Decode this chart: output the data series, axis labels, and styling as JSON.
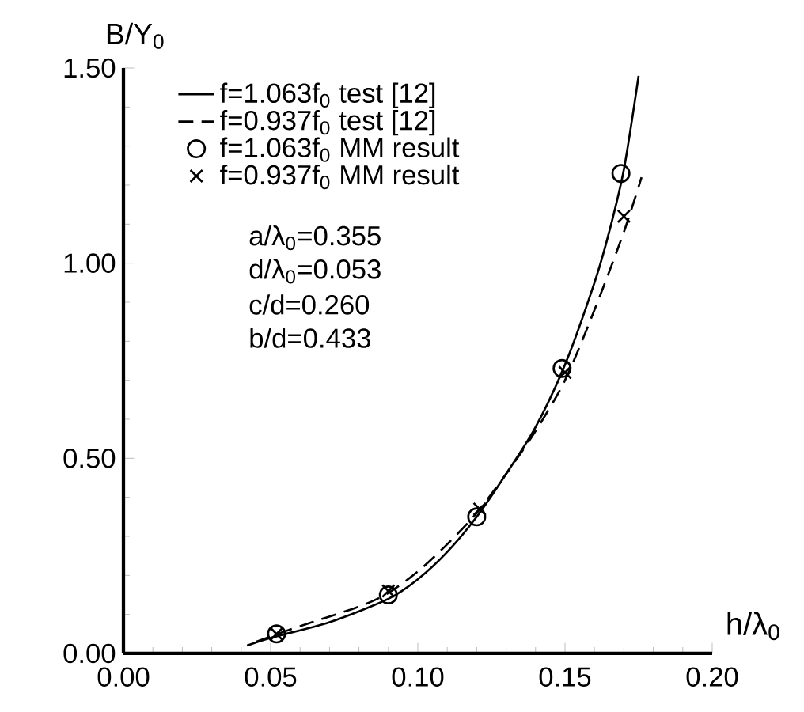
{
  "chart_data": {
    "type": "line",
    "xlabel": "h/λ$_{0}$",
    "ylabel": "B/Y$_{0}$",
    "xlim": [
      0,
      0.2
    ],
    "ylim": [
      0,
      1.5
    ],
    "xticks": [
      {
        "value": 0,
        "label": "0.00"
      },
      {
        "value": 0.05,
        "label": "0.05"
      },
      {
        "value": 0.1,
        "label": "0.10"
      },
      {
        "value": 0.15,
        "label": "0.15"
      },
      {
        "value": 0.2,
        "label": "0.20"
      }
    ],
    "yticks": [
      {
        "value": 0,
        "label": "0.00"
      },
      {
        "value": 0.5,
        "label": "0.50"
      },
      {
        "value": 1.0,
        "label": "1.00"
      },
      {
        "value": 1.5,
        "label": "1.50"
      }
    ],
    "grid": false,
    "legend": "top left",
    "series": [
      {
        "name": "f=1.063f$_{0}$ test [12]",
        "line_style": "solid",
        "marker": "none",
        "color": "#000000",
        "x": [
          0.042,
          0.05,
          0.07,
          0.09,
          0.1,
          0.11,
          0.12,
          0.13,
          0.14,
          0.15,
          0.16,
          0.165,
          0.17,
          0.175
        ],
        "values": [
          0.02,
          0.04,
          0.08,
          0.14,
          0.19,
          0.26,
          0.35,
          0.46,
          0.58,
          0.74,
          0.95,
          1.08,
          1.24,
          1.48
        ]
      },
      {
        "name": "f=0.937f$_{0}$ test [12]",
        "line_style": "dashed",
        "marker": "none",
        "color": "#000000",
        "x": [
          0.045,
          0.06,
          0.08,
          0.09,
          0.1,
          0.11,
          0.12,
          0.13,
          0.14,
          0.15,
          0.16,
          0.17,
          0.176
        ],
        "values": [
          0.03,
          0.07,
          0.12,
          0.155,
          0.21,
          0.28,
          0.36,
          0.46,
          0.57,
          0.7,
          0.88,
          1.08,
          1.22
        ]
      },
      {
        "name": "f=1.063f$_{0}$ MM  result",
        "type": "scatter",
        "marker": "circle",
        "color": "#000000",
        "x": [
          0.052,
          0.09,
          0.12,
          0.149,
          0.169
        ],
        "values": [
          0.05,
          0.15,
          0.35,
          0.73,
          1.23
        ]
      },
      {
        "name": "f=0.937f$_{0}$ MM  result",
        "type": "scatter",
        "marker": "cross",
        "color": "#000000",
        "x": [
          0.052,
          0.09,
          0.121,
          0.15,
          0.17
        ],
        "values": [
          0.05,
          0.16,
          0.37,
          0.72,
          1.12
        ]
      }
    ],
    "annotations": [
      "a/λ$_{0}$=0.355",
      "d/λ$_{0}$=0.053",
      "c/d=0.260",
      "b/d=0.433"
    ]
  }
}
